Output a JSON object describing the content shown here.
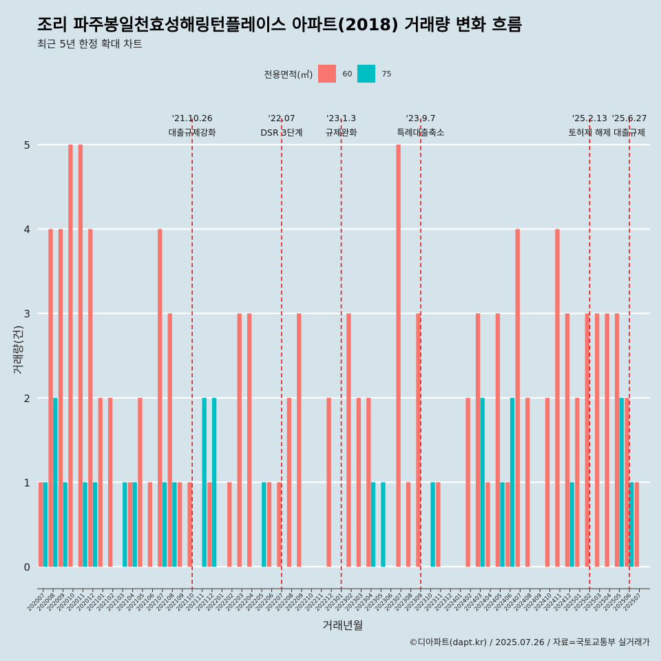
{
  "title": "조리 파주봉일천효성해링턴플레이스 아파트(2018) 거래량 변화 흐름",
  "subtitle": "최근 5년 한정 확대 차트",
  "caption": "©디아파트(dapt.kr) / 2025.07.26 / 자료=국토교통부 실거래가",
  "legend": {
    "title": "전용면적(㎡)",
    "items": [
      {
        "label": "60",
        "color": "#f8766d"
      },
      {
        "label": "75",
        "color": "#00bfc4"
      }
    ]
  },
  "chart_data": {
    "type": "bar",
    "xlabel": "거래년월",
    "ylabel": "거래량(건)",
    "ylim": [
      0,
      5
    ],
    "yticks": [
      0,
      1,
      2,
      3,
      4,
      5
    ],
    "categories": [
      "202007",
      "202008",
      "202009",
      "202010",
      "202011",
      "202012",
      "202101",
      "202102",
      "202103",
      "202104",
      "202105",
      "202106",
      "202107",
      "202108",
      "202109",
      "202110",
      "202111",
      "202112",
      "202201",
      "202202",
      "202203",
      "202204",
      "202205",
      "202206",
      "202207",
      "202208",
      "202209",
      "202210",
      "202211",
      "202212",
      "202301",
      "202302",
      "202303",
      "202304",
      "202305",
      "202306",
      "202307",
      "202308",
      "202309",
      "202310",
      "202311",
      "202312",
      "202401",
      "202402",
      "202403",
      "202404",
      "202405",
      "202406",
      "202407",
      "202408",
      "202409",
      "202410",
      "202411",
      "202412",
      "202501",
      "202502",
      "202503",
      "202504",
      "202505",
      "202506",
      "202507"
    ],
    "series": [
      {
        "name": "60",
        "color": "#f8766d",
        "values": [
          1,
          4,
          4,
          5,
          5,
          4,
          2,
          2,
          0,
          1,
          2,
          1,
          4,
          3,
          1,
          1,
          0,
          1,
          0,
          1,
          3,
          3,
          0,
          1,
          1,
          2,
          3,
          0,
          0,
          2,
          0,
          3,
          2,
          2,
          0,
          0,
          5,
          1,
          3,
          0,
          1,
          0,
          0,
          2,
          3,
          1,
          3,
          1,
          4,
          2,
          0,
          2,
          4,
          3,
          2,
          3,
          3,
          3,
          3,
          2,
          1
        ]
      },
      {
        "name": "75",
        "color": "#00bfc4",
        "values": [
          1,
          2,
          1,
          0,
          1,
          1,
          0,
          0,
          1,
          1,
          0,
          0,
          1,
          1,
          0,
          0,
          2,
          2,
          0,
          0,
          0,
          0,
          1,
          0,
          0,
          0,
          0,
          0,
          0,
          0,
          0,
          0,
          0,
          1,
          1,
          0,
          0,
          0,
          0,
          1,
          0,
          0,
          0,
          0,
          2,
          0,
          1,
          2,
          0,
          0,
          0,
          0,
          0,
          1,
          0,
          0,
          0,
          0,
          2,
          1,
          0
        ]
      }
    ],
    "events": [
      {
        "date": "'21.10.26",
        "label": "대출규제강화",
        "month": "202110"
      },
      {
        "date": "'22.07",
        "label": "DSR 3단계",
        "month": "202207"
      },
      {
        "date": "'23.1.3",
        "label": "규제완화",
        "month": "202301"
      },
      {
        "date": "'23.9.7",
        "label": "특례대출축소",
        "month": "202309"
      },
      {
        "date": "'25.2.13",
        "label": "토허제 해제",
        "month": "202502"
      },
      {
        "date": "'25.6.27",
        "label": "대출규제",
        "month": "202506"
      }
    ]
  }
}
